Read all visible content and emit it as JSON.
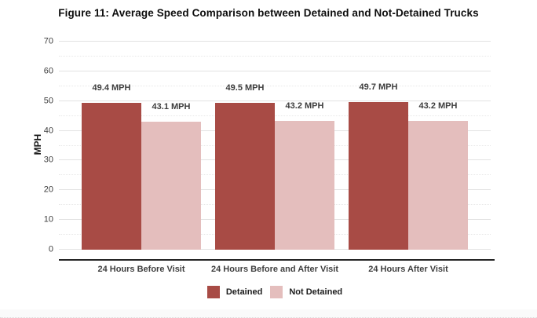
{
  "chart_data": {
    "type": "bar",
    "title": "Figure 11: Average Speed Comparison between Detained and Not-Detained Trucks",
    "categories": [
      "24 Hours Before Visit",
      "24 Hours Before and After Visit",
      "24 Hours After Visit"
    ],
    "series": [
      {
        "name": "Detained",
        "color": "#A84B45",
        "values": [
          49.4,
          49.5,
          49.7
        ],
        "data_labels": [
          "49.4 MPH",
          "49.5 MPH",
          "49.7 MPH"
        ]
      },
      {
        "name": "Not Detained",
        "color": "#E4BEBD",
        "values": [
          43.1,
          43.2,
          43.2
        ],
        "data_labels": [
          "43.1 MPH",
          "43.2 MPH",
          "43.2 MPH"
        ]
      }
    ],
    "xlabel": "",
    "ylabel": "MPH",
    "ylim": [
      0,
      70
    ],
    "yticks": [
      0,
      10,
      20,
      30,
      40,
      50,
      60,
      70
    ],
    "minor_gridline_step": 5,
    "grid": "on",
    "legend_position": "bottom"
  },
  "style": {
    "grid_major_color": "#E2E2E2",
    "grid_minor_color": "#E7E7E7",
    "axis_line_color": "#242424"
  }
}
